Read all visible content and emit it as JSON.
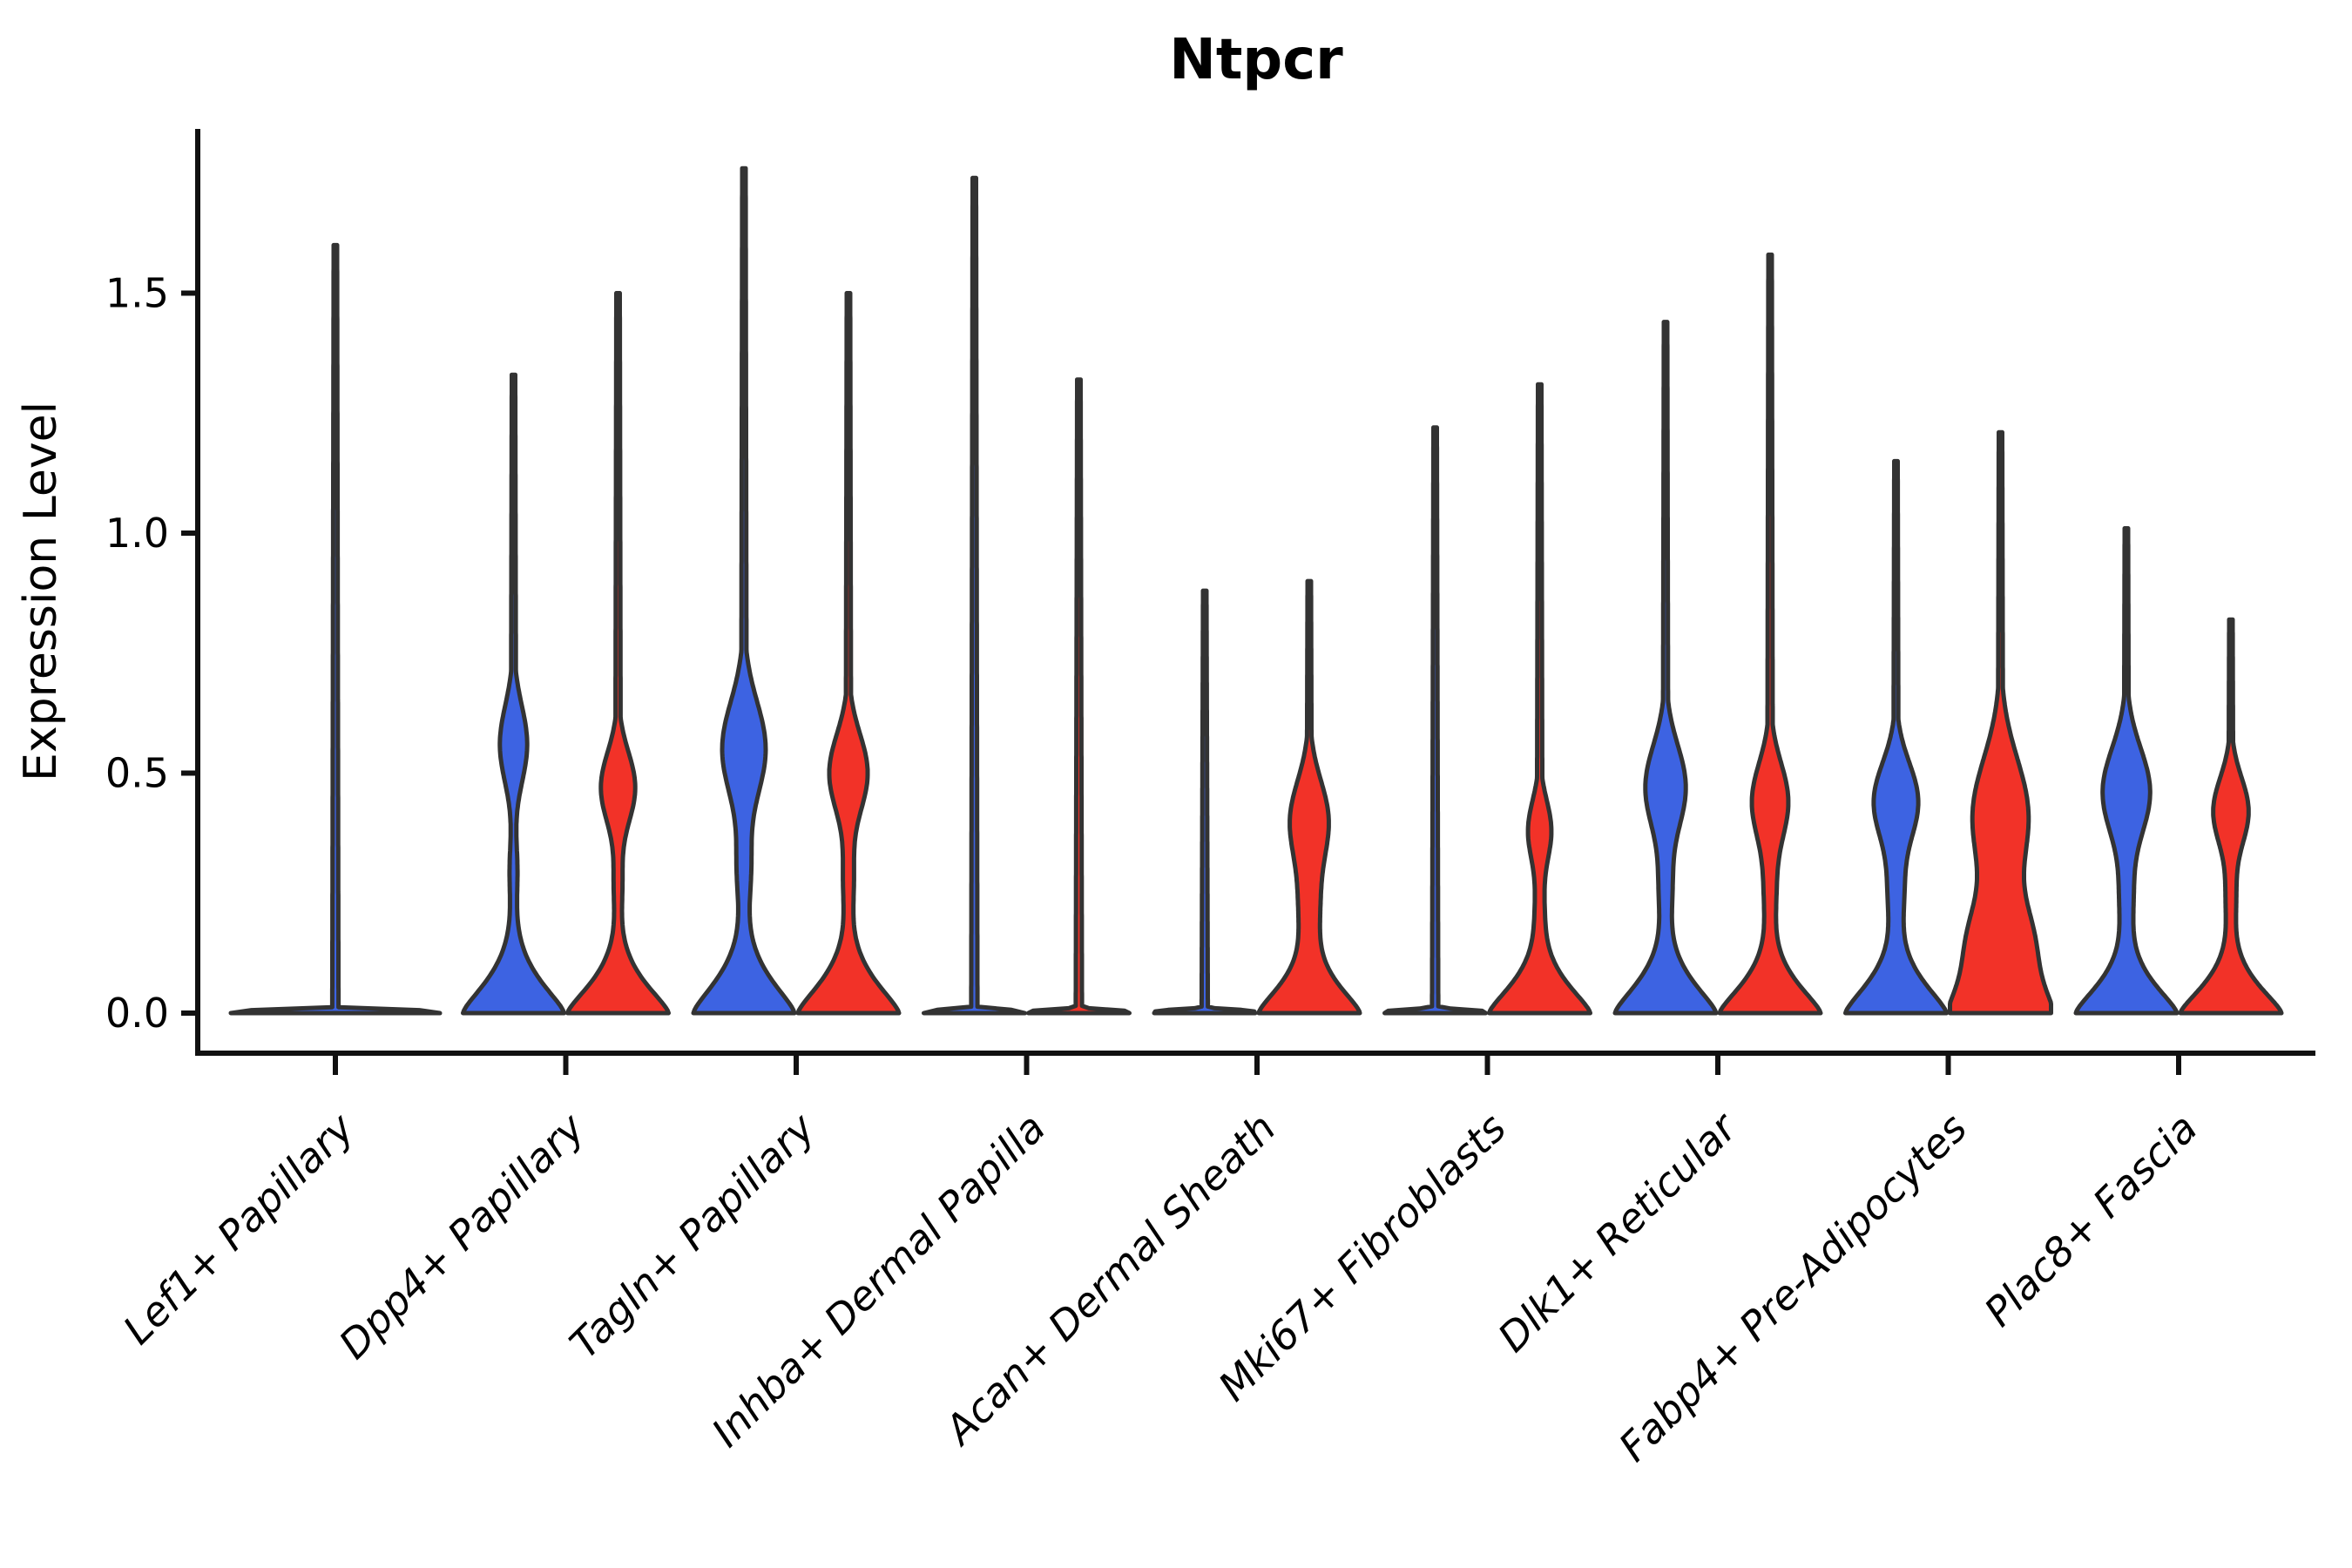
{
  "chart_data": {
    "type": "violin",
    "title": "Ntpcr",
    "ylabel": "Expression Level",
    "xlabel": "",
    "grid": false,
    "legend_position": "none",
    "ylim": [
      -0.08,
      1.84
    ],
    "yticks": [
      "0.0",
      "0.5",
      "1.0",
      "1.5"
    ],
    "ytick_values": [
      0.0,
      0.5,
      1.0,
      1.5
    ],
    "palette": {
      "blue": "#3D63E2",
      "red": "#F23228",
      "edge": "#333333",
      "axis": "#111111"
    },
    "categories": [
      "Lef1+ Papillary",
      "Dpp4+ Papillary",
      "Tagln+ Papillary",
      "Inhba+ Dermal Papilla",
      "Acan+ Dermal Sheath",
      "Mki67+ Fibroblasts",
      "Dlk1+ Reticular",
      "Fabp4+ Pre-Adipocytes",
      "Plac8+ Fascia"
    ],
    "groups": [
      {
        "category": "Lef1+ Papillary",
        "violins": [
          {
            "split": "blue",
            "side": "center",
            "max": 1.6,
            "flat": true
          }
        ]
      },
      {
        "category": "Dpp4+ Papillary",
        "violins": [
          {
            "split": "blue",
            "side": "left",
            "max": 1.33,
            "flat": false,
            "foot": {
              "s": 0.095,
              "p": 1.4
            },
            "bumps": [
              {
                "a": 0.27,
                "m": 0.56,
                "s": 0.115
              },
              {
                "a": 0.07,
                "m": 0.3,
                "s": 0.09
              }
            ]
          },
          {
            "split": "red",
            "side": "right",
            "max": 1.5,
            "flat": false,
            "foot": {
              "s": 0.09,
              "p": 1.4
            },
            "bumps": [
              {
                "a": 0.34,
                "m": 0.47,
                "s": 0.105
              },
              {
                "a": 0.07,
                "m": 0.27,
                "s": 0.08
              }
            ]
          }
        ]
      },
      {
        "category": "Tagln+ Papillary",
        "violins": [
          {
            "split": "blue",
            "side": "left",
            "max": 1.76,
            "flat": false,
            "foot": {
              "s": 0.1,
              "p": 1.4
            },
            "bumps": [
              {
                "a": 0.43,
                "m": 0.55,
                "s": 0.14
              },
              {
                "a": 0.12,
                "m": 0.3,
                "s": 0.1
              }
            ]
          },
          {
            "split": "red",
            "side": "right",
            "max": 1.5,
            "flat": false,
            "foot": {
              "s": 0.095,
              "p": 1.4
            },
            "bumps": [
              {
                "a": 0.38,
                "m": 0.5,
                "s": 0.115
              },
              {
                "a": 0.09,
                "m": 0.28,
                "s": 0.09
              }
            ]
          }
        ]
      },
      {
        "category": "Inhba+ Dermal Papilla",
        "violins": [
          {
            "split": "blue",
            "side": "left",
            "max": 1.74,
            "flat": true
          },
          {
            "split": "red",
            "side": "right",
            "max": 1.32,
            "flat": true
          }
        ]
      },
      {
        "category": "Acan+ Dermal Sheath",
        "violins": [
          {
            "split": "blue",
            "side": "left",
            "max": 0.88,
            "flat": true
          },
          {
            "split": "red",
            "side": "right",
            "max": 0.9,
            "flat": false,
            "foot": {
              "s": 0.09,
              "p": 1.4
            },
            "bumps": [
              {
                "a": 0.38,
                "m": 0.4,
                "s": 0.12
              },
              {
                "a": 0.15,
                "m": 0.22,
                "s": 0.1
              }
            ]
          }
        ]
      },
      {
        "category": "Mki67+ Fibroblasts",
        "violins": [
          {
            "split": "blue",
            "side": "left",
            "max": 1.22,
            "flat": true
          },
          {
            "split": "red",
            "side": "right",
            "max": 1.31,
            "flat": false,
            "foot": {
              "s": 0.09,
              "p": 1.4
            },
            "bumps": [
              {
                "a": 0.23,
                "m": 0.38,
                "s": 0.09
              },
              {
                "a": 0.06,
                "m": 0.22,
                "s": 0.08
              }
            ]
          }
        ]
      },
      {
        "category": "Dlk1+ Reticular",
        "violins": [
          {
            "split": "blue",
            "side": "left",
            "max": 1.44,
            "flat": false,
            "foot": {
              "s": 0.095,
              "p": 1.4
            },
            "bumps": [
              {
                "a": 0.4,
                "m": 0.47,
                "s": 0.125
              },
              {
                "a": 0.1,
                "m": 0.26,
                "s": 0.09
              }
            ]
          },
          {
            "split": "red",
            "side": "right",
            "max": 1.58,
            "flat": false,
            "foot": {
              "s": 0.09,
              "p": 1.4
            },
            "bumps": [
              {
                "a": 0.36,
                "m": 0.44,
                "s": 0.115
              },
              {
                "a": 0.09,
                "m": 0.25,
                "s": 0.09
              }
            ]
          }
        ]
      },
      {
        "category": "Fabp4+ Pre-Adipocytes",
        "violins": [
          {
            "split": "blue",
            "side": "left",
            "max": 1.15,
            "flat": false,
            "foot": {
              "s": 0.095,
              "p": 1.4
            },
            "bumps": [
              {
                "a": 0.44,
                "m": 0.44,
                "s": 0.115
              },
              {
                "a": 0.12,
                "m": 0.25,
                "s": 0.09
              }
            ]
          },
          {
            "split": "red",
            "side": "right",
            "max": 1.21,
            "flat": false,
            "foot": {
              "s": 0.12,
              "p": 1.4
            },
            "bumps": [
              {
                "a": 0.55,
                "m": 0.41,
                "s": 0.17
              },
              {
                "a": 0.4,
                "m": 0.16,
                "s": 0.11
              }
            ]
          }
        ]
      },
      {
        "category": "Plac8+ Fascia",
        "violins": [
          {
            "split": "blue",
            "side": "left",
            "max": 1.01,
            "flat": false,
            "foot": {
              "s": 0.09,
              "p": 1.4
            },
            "bumps": [
              {
                "a": 0.47,
                "m": 0.46,
                "s": 0.13
              },
              {
                "a": 0.1,
                "m": 0.24,
                "s": 0.09
              }
            ]
          },
          {
            "split": "red",
            "side": "right",
            "max": 0.82,
            "flat": false,
            "foot": {
              "s": 0.085,
              "p": 1.4
            },
            "bumps": [
              {
                "a": 0.35,
                "m": 0.42,
                "s": 0.1
              },
              {
                "a": 0.08,
                "m": 0.24,
                "s": 0.08
              }
            ]
          }
        ]
      }
    ]
  }
}
